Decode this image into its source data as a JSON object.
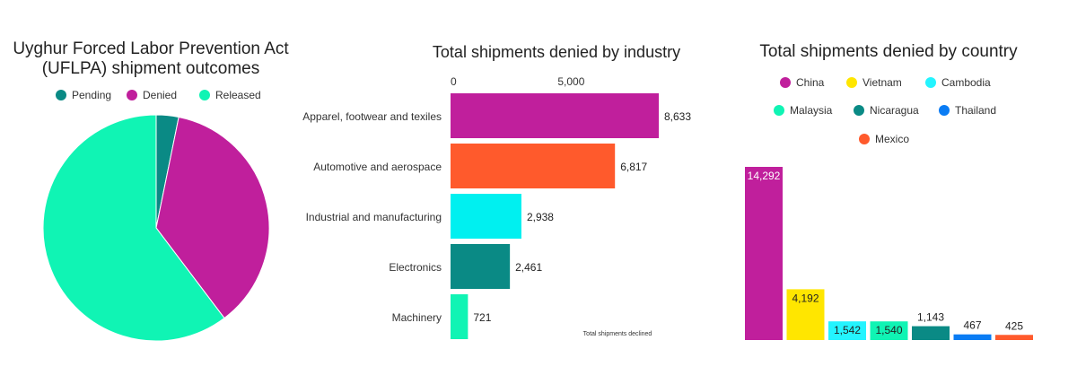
{
  "colors": {
    "pending": "#0a8a85",
    "denied": "#c01f9c",
    "released": "#10f4b4"
  },
  "chart_data": [
    {
      "type": "pie",
      "title": [
        "Uyghur Forced Labor Prevention Act",
        "(UFLPA) shipment outcomes"
      ],
      "legend": "top",
      "slices": [
        {
          "name": "Pending",
          "value": 3.2,
          "color": "#0a8a85"
        },
        {
          "name": "Denied",
          "value": 36.5,
          "color": "#c01f9c"
        },
        {
          "name": "Released",
          "value": 60.3,
          "color": "#10f4b4"
        }
      ]
    },
    {
      "type": "bar",
      "orientation": "horizontal",
      "title": "Total shipments denied by industry",
      "xlabel": "Total shipments declined",
      "xticks": [
        {
          "value": 0,
          "label": "0"
        },
        {
          "value": 5000,
          "label": "5,000"
        }
      ],
      "xlim": [
        0,
        8633
      ],
      "categories": [
        "Apparel, footwear and texiles",
        "Automotive and aerospace",
        "Industrial and manufacturing",
        "Electronics",
        "Machinery"
      ],
      "values": [
        8633,
        6817,
        2938,
        2461,
        721
      ],
      "labels": [
        "8,633",
        "6,817",
        "2,938",
        "2,461",
        "721"
      ],
      "colors": [
        "#c01f9c",
        "#ff5a2c",
        "#00f0f0",
        "#0a8a85",
        "#10f4b4"
      ]
    },
    {
      "type": "bar",
      "title": "Total shipments denied by country",
      "legend": "top",
      "categories": [
        "China",
        "Vietnam",
        "Cambodia",
        "Malaysia",
        "Nicaragua",
        "Thailand",
        "Mexico"
      ],
      "values": [
        14292,
        4192,
        1542,
        1540,
        1143,
        467,
        425
      ],
      "labels": [
        "14,292",
        "4,192",
        "1,542",
        "1,540",
        "1,143",
        "467",
        "425"
      ],
      "colors": [
        "#c01f9c",
        "#ffe600",
        "#24f4ff",
        "#10f4b4",
        "#0a8a85",
        "#0a7cf4",
        "#ff5a2c"
      ],
      "ylim": [
        0,
        14292
      ]
    }
  ]
}
